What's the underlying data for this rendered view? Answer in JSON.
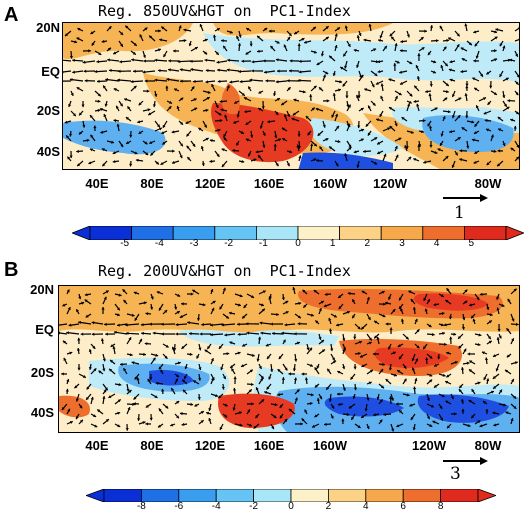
{
  "panels": [
    {
      "letter": "A",
      "title": "Reg. 850UV&HGT on  PC1-Index",
      "lat_labels": [
        "20N",
        "EQ",
        "20S",
        "40S"
      ],
      "lon_labels": [
        "40E",
        "80E",
        "120E",
        "160E",
        "160W",
        "120W",
        "80W"
      ],
      "reference_vector": "1",
      "colorbar_ticks": [
        "-5",
        "-4",
        "-3",
        "-2",
        "-1",
        "0",
        "1",
        "2",
        "3",
        "4",
        "5"
      ]
    },
    {
      "letter": "B",
      "title": "Reg. 200UV&HGT on  PC1-Index",
      "lat_labels": [
        "20N",
        "EQ",
        "20S",
        "40S"
      ],
      "lon_labels": [
        "40E",
        "80E",
        "120E",
        "160E",
        "160W",
        "120W",
        "80W"
      ],
      "reference_vector": "3",
      "colorbar_ticks": [
        "-8",
        "-6",
        "-4",
        "-2",
        "0",
        "2",
        "4",
        "6",
        "8"
      ]
    }
  ],
  "colors": {
    "colorbar": [
      "#0a2fd6",
      "#1f6fe6",
      "#3a9ef0",
      "#66c4f5",
      "#a9e6f7",
      "#fdf1c9",
      "#fcd386",
      "#f7a84b",
      "#ee6e2e",
      "#df2a1d"
    ],
    "neg_strong": "#1f4fe0",
    "neg_mid": "#5fb0f0",
    "neg_weak": "#bfeaf8",
    "pos_weak": "#fdeec9",
    "pos_mid": "#f6b454",
    "pos_strong": "#e73a22"
  }
}
